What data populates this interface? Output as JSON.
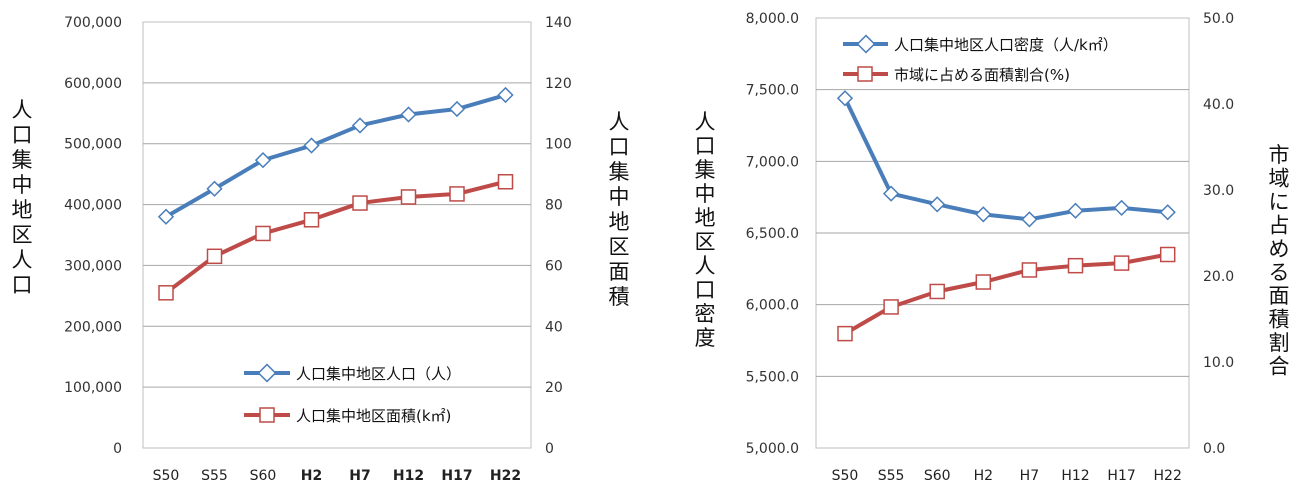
{
  "colors": {
    "series_blue": "#4a7ebb",
    "series_red": "#be4b48",
    "grid": "#a6a6a6",
    "plot_border": "#bfbfbf"
  },
  "chart_data": [
    {
      "type": "line",
      "categories": [
        "S50",
        "S55",
        "S60",
        "H2",
        "H7",
        "H12",
        "H17",
        "H22"
      ],
      "bold_categories": [
        "H2",
        "H7",
        "H12",
        "H17",
        "H22"
      ],
      "ylabel_left": "人口集中地区人口",
      "ylabel_right": "人口集中地区面積",
      "yaxis_left": {
        "min": 0,
        "max": 700000,
        "ticks": [
          "0",
          "100,000",
          "200,000",
          "300,000",
          "400,000",
          "500,000",
          "600,000",
          "700,000"
        ]
      },
      "yaxis_right": {
        "min": 0,
        "max": 140,
        "ticks": [
          "0",
          "20",
          "40",
          "60",
          "80",
          "100",
          "120",
          "140"
        ]
      },
      "grid": true,
      "legend_position": "bottom-right",
      "series": [
        {
          "name": "人口集中地区人口（人）",
          "axis": "left",
          "marker": "diamond",
          "color": "#4a7ebb",
          "values": [
            380000,
            426000,
            473000,
            497000,
            530000,
            548000,
            557000,
            580000
          ]
        },
        {
          "name": "人口集中地区面積(k㎡)",
          "axis": "right",
          "marker": "square",
          "color": "#be4b48",
          "values": [
            51,
            63,
            70.5,
            75,
            80.5,
            82.5,
            83.5,
            87.5
          ]
        }
      ]
    },
    {
      "type": "line",
      "categories": [
        "S50",
        "S55",
        "S60",
        "H2",
        "H7",
        "H12",
        "H17",
        "H22"
      ],
      "bold_categories": [],
      "ylabel_left": "人口集中地区人口密度",
      "ylabel_right": "市域に占める面積割合",
      "yaxis_left": {
        "min": 5000,
        "max": 8000,
        "ticks": [
          "5,000.0",
          "5,500.0",
          "6,000.0",
          "6,500.0",
          "7,000.0",
          "7,500.0",
          "8,000.0"
        ]
      },
      "yaxis_right": {
        "min": 0,
        "max": 50,
        "ticks": [
          "0.0",
          "10.0",
          "20.0",
          "30.0",
          "40.0",
          "50.0"
        ]
      },
      "grid": true,
      "legend_position": "top-right",
      "series": [
        {
          "name": "人口集中地区人口密度（人/k㎡）",
          "axis": "left",
          "marker": "diamond",
          "color": "#4a7ebb",
          "values": [
            7440,
            6775,
            6700,
            6630,
            6595,
            6655,
            6675,
            6645
          ]
        },
        {
          "name": "市域に占める面積割合(%)",
          "axis": "right",
          "marker": "square",
          "color": "#be4b48",
          "values": [
            13.3,
            16.4,
            18.2,
            19.3,
            20.7,
            21.2,
            21.5,
            22.5
          ]
        }
      ]
    }
  ]
}
